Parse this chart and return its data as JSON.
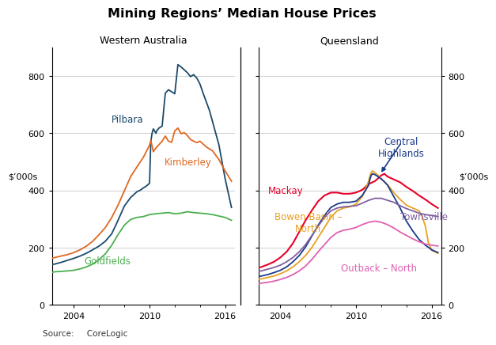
{
  "title": "Mining Regions’ Median House Prices",
  "subtitle_left": "Western Australia",
  "subtitle_right": "Queensland",
  "ylabel_left": "$’000s",
  "ylabel_right": "$’000s",
  "source": "Source:     CoreLogic",
  "ylim": [
    0,
    900
  ],
  "yticks": [
    0,
    200,
    400,
    600,
    800
  ],
  "xstart": 2002.25,
  "xend": 2016.75,
  "xticks": [
    2004,
    2010,
    2016
  ],
  "colors": {
    "pilbara": "#1a4a6b",
    "kimberley": "#e06820",
    "goldfields": "#4caf50",
    "mackay": "#e8002a",
    "bowen_basin": "#e8a020",
    "central_highlands": "#1a3a8a",
    "townsville": "#8060a0",
    "outback_north": "#e060b0"
  },
  "wa": {
    "pilbara": {
      "years": [
        2002.25,
        2002.5,
        2003,
        2003.5,
        2004,
        2004.5,
        2005,
        2005.5,
        2006,
        2006.5,
        2007,
        2007.5,
        2008,
        2008.25,
        2008.5,
        2008.75,
        2009,
        2009.25,
        2009.5,
        2009.75,
        2010,
        2010.1,
        2010.2,
        2010.3,
        2010.4,
        2010.5,
        2010.6,
        2010.75,
        2011,
        2011.25,
        2011.5,
        2011.75,
        2012,
        2012.25,
        2012.5,
        2012.75,
        2013,
        2013.25,
        2013.5,
        2013.75,
        2014,
        2014.25,
        2014.5,
        2014.75,
        2015,
        2015.25,
        2015.5,
        2015.75,
        2016,
        2016.5
      ],
      "values": [
        140,
        142,
        148,
        155,
        162,
        170,
        180,
        192,
        205,
        222,
        248,
        295,
        345,
        360,
        375,
        385,
        395,
        400,
        408,
        415,
        425,
        570,
        600,
        615,
        608,
        600,
        610,
        618,
        625,
        740,
        752,
        745,
        738,
        840,
        832,
        822,
        812,
        798,
        805,
        793,
        772,
        740,
        710,
        680,
        640,
        600,
        560,
        500,
        440,
        340
      ]
    },
    "kimberley": {
      "years": [
        2002.25,
        2002.5,
        2003,
        2003.5,
        2004,
        2004.5,
        2005,
        2005.5,
        2006,
        2006.5,
        2007,
        2007.5,
        2008,
        2008.5,
        2009,
        2009.5,
        2010,
        2010.1,
        2010.3,
        2010.5,
        2010.75,
        2011,
        2011.25,
        2011.5,
        2011.75,
        2012,
        2012.25,
        2012.5,
        2012.75,
        2013,
        2013.25,
        2013.5,
        2013.75,
        2014,
        2014.5,
        2015,
        2015.5,
        2016,
        2016.5
      ],
      "values": [
        162,
        165,
        170,
        175,
        182,
        192,
        205,
        222,
        245,
        270,
        305,
        348,
        398,
        448,
        482,
        515,
        558,
        575,
        535,
        548,
        560,
        572,
        590,
        572,
        568,
        608,
        618,
        598,
        602,
        592,
        578,
        572,
        567,
        572,
        552,
        538,
        508,
        468,
        432
      ]
    },
    "goldfields": {
      "years": [
        2002.25,
        2002.5,
        2003,
        2003.5,
        2004,
        2004.5,
        2005,
        2005.5,
        2006,
        2006.5,
        2007,
        2007.5,
        2008,
        2008.5,
        2009,
        2009.5,
        2010,
        2010.5,
        2011,
        2011.5,
        2012,
        2012.5,
        2013,
        2013.5,
        2014,
        2014.5,
        2015,
        2015.5,
        2016,
        2016.5
      ],
      "values": [
        112,
        115,
        116,
        118,
        120,
        125,
        132,
        142,
        158,
        178,
        208,
        245,
        278,
        298,
        305,
        308,
        315,
        318,
        320,
        322,
        318,
        320,
        325,
        322,
        320,
        318,
        315,
        310,
        305,
        295
      ]
    }
  },
  "qld": {
    "mackay": {
      "years": [
        2002.25,
        2002.5,
        2003,
        2003.5,
        2004,
        2004.5,
        2005,
        2005.5,
        2006,
        2006.5,
        2007,
        2007.5,
        2008,
        2008.5,
        2009,
        2009.5,
        2010,
        2010.5,
        2011,
        2011.5,
        2012,
        2012.25,
        2012.5,
        2013,
        2013.5,
        2014,
        2014.5,
        2015,
        2015.5,
        2016,
        2016.5
      ],
      "values": [
        128,
        132,
        140,
        150,
        165,
        185,
        215,
        255,
        295,
        330,
        362,
        382,
        392,
        392,
        388,
        388,
        392,
        402,
        422,
        432,
        452,
        458,
        448,
        438,
        428,
        412,
        398,
        382,
        368,
        352,
        338
      ]
    },
    "bowen_basin": {
      "years": [
        2002.25,
        2002.5,
        2003,
        2003.5,
        2004,
        2004.5,
        2005,
        2005.5,
        2006,
        2006.5,
        2007,
        2007.5,
        2008,
        2008.5,
        2009,
        2009.5,
        2010,
        2010.5,
        2011,
        2011.1,
        2011.2,
        2011.3,
        2011.5,
        2011.75,
        2012,
        2012.25,
        2012.5,
        2013,
        2013.5,
        2014,
        2014.5,
        2015,
        2015.25,
        2015.5,
        2015.75,
        2016,
        2016.5
      ],
      "values": [
        88,
        90,
        95,
        100,
        108,
        118,
        132,
        150,
        172,
        200,
        235,
        270,
        305,
        328,
        338,
        342,
        352,
        378,
        432,
        450,
        462,
        468,
        462,
        452,
        440,
        430,
        420,
        392,
        368,
        348,
        338,
        328,
        308,
        275,
        215,
        190,
        180
      ]
    },
    "central_highlands": {
      "years": [
        2002.25,
        2002.5,
        2003,
        2003.5,
        2004,
        2004.5,
        2005,
        2005.5,
        2006,
        2006.5,
        2007,
        2007.5,
        2008,
        2008.5,
        2009,
        2009.5,
        2010,
        2010.5,
        2011,
        2011.1,
        2011.2,
        2011.3,
        2011.5,
        2011.75,
        2012,
        2012.25,
        2012.5,
        2013,
        2013.5,
        2014,
        2014.5,
        2015,
        2015.5,
        2016,
        2016.5
      ],
      "values": [
        98,
        100,
        105,
        112,
        120,
        132,
        150,
        172,
        202,
        240,
        278,
        312,
        340,
        352,
        358,
        358,
        362,
        382,
        418,
        438,
        452,
        458,
        455,
        448,
        440,
        430,
        418,
        378,
        338,
        292,
        258,
        228,
        208,
        192,
        182
      ]
    },
    "townsville": {
      "years": [
        2002.25,
        2002.5,
        2003,
        2003.5,
        2004,
        2004.5,
        2005,
        2005.5,
        2006,
        2006.5,
        2007,
        2007.5,
        2008,
        2008.5,
        2009,
        2009.5,
        2010,
        2010.5,
        2011,
        2011.5,
        2012,
        2012.5,
        2013,
        2013.5,
        2014,
        2014.5,
        2015,
        2015.5,
        2016,
        2016.5
      ],
      "values": [
        115,
        118,
        124,
        130,
        138,
        150,
        165,
        185,
        210,
        242,
        275,
        305,
        328,
        338,
        342,
        344,
        346,
        355,
        365,
        372,
        372,
        365,
        358,
        346,
        336,
        328,
        320,
        315,
        312,
        308
      ]
    },
    "outback_north": {
      "years": [
        2002.25,
        2002.5,
        2003,
        2003.5,
        2004,
        2004.5,
        2005,
        2005.5,
        2006,
        2006.5,
        2007,
        2007.5,
        2008,
        2008.5,
        2009,
        2009.5,
        2010,
        2010.5,
        2011,
        2011.5,
        2012,
        2012.5,
        2013,
        2013.5,
        2014,
        2014.5,
        2015,
        2015.5,
        2016,
        2016.5
      ],
      "values": [
        72,
        75,
        78,
        82,
        88,
        95,
        105,
        118,
        135,
        158,
        185,
        210,
        235,
        252,
        260,
        264,
        270,
        280,
        288,
        292,
        288,
        280,
        268,
        254,
        242,
        230,
        220,
        212,
        208,
        205
      ]
    }
  }
}
